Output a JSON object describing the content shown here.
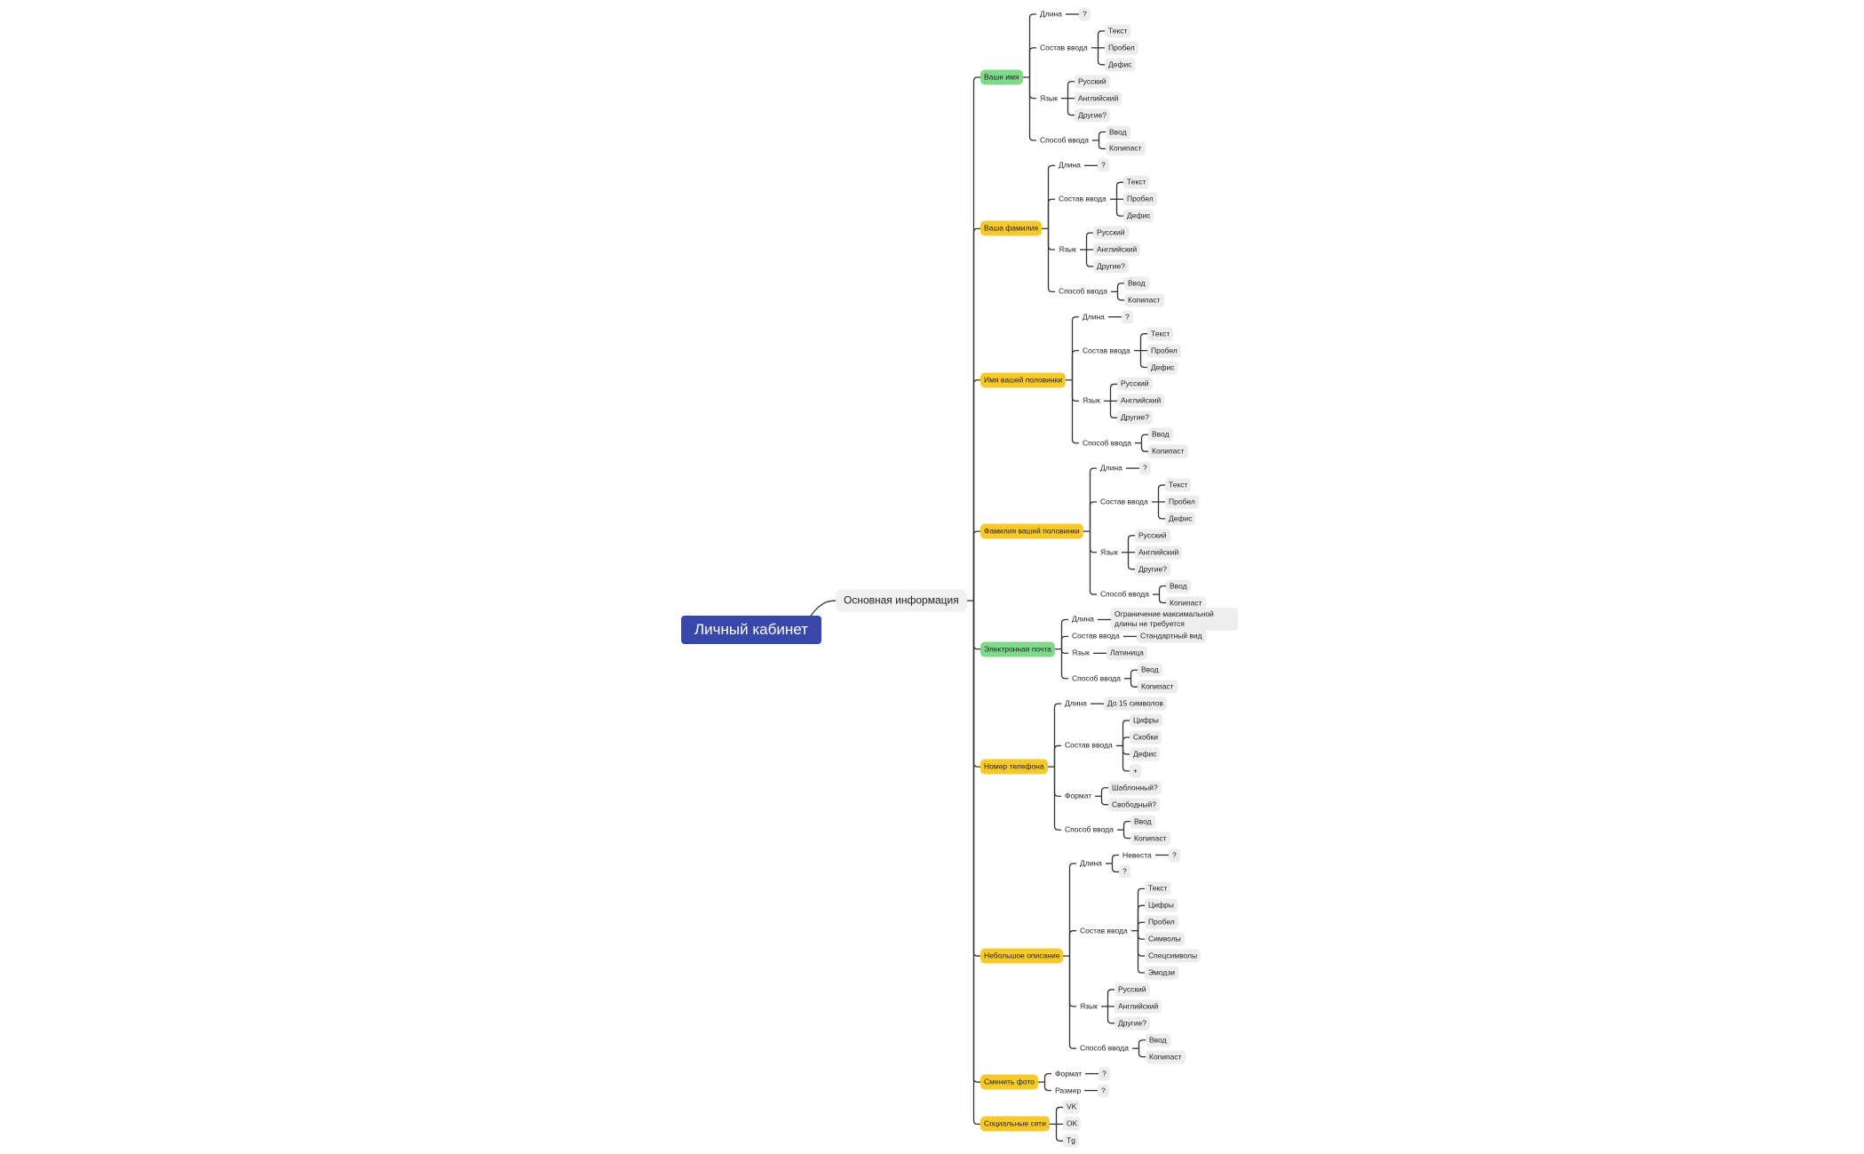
{
  "root": {
    "label": "Личный кабинет",
    "children": [
      {
        "label": "Основная информация",
        "children": [
          {
            "label": "Ваше имя",
            "color": "#7fd98a",
            "children": [
              {
                "label": "Длина",
                "children": [
                  {
                    "label": "?"
                  }
                ]
              },
              {
                "label": "Состав ввода",
                "children": [
                  {
                    "label": "Текст"
                  },
                  {
                    "label": "Пробел"
                  },
                  {
                    "label": "Дефис"
                  }
                ]
              },
              {
                "label": "Язык",
                "children": [
                  {
                    "label": "Русский"
                  },
                  {
                    "label": "Английский"
                  },
                  {
                    "label": "Другие?"
                  }
                ]
              },
              {
                "label": "Способ ввода",
                "children": [
                  {
                    "label": "Ввод"
                  },
                  {
                    "label": "Копипаст"
                  }
                ]
              }
            ]
          },
          {
            "label": "Ваша фамилия",
            "color": "#f7c92a",
            "children": [
              {
                "label": "Длина",
                "children": [
                  {
                    "label": "?"
                  }
                ]
              },
              {
                "label": "Состав ввода",
                "children": [
                  {
                    "label": "Текст"
                  },
                  {
                    "label": "Пробел"
                  },
                  {
                    "label": "Дефис"
                  }
                ]
              },
              {
                "label": "Язык",
                "children": [
                  {
                    "label": "Русский"
                  },
                  {
                    "label": "Английский"
                  },
                  {
                    "label": "Другие?"
                  }
                ]
              },
              {
                "label": "Способ ввода",
                "children": [
                  {
                    "label": "Ввод"
                  },
                  {
                    "label": "Копипаст"
                  }
                ]
              }
            ]
          },
          {
            "label": "Имя вашей половинки",
            "color": "#f7c92a",
            "children": [
              {
                "label": "Длина",
                "children": [
                  {
                    "label": "?"
                  }
                ]
              },
              {
                "label": "Состав ввода",
                "children": [
                  {
                    "label": "Текст"
                  },
                  {
                    "label": "Пробел"
                  },
                  {
                    "label": "Дефис"
                  }
                ]
              },
              {
                "label": "Язык",
                "children": [
                  {
                    "label": "Русский"
                  },
                  {
                    "label": "Английский"
                  },
                  {
                    "label": "Другие?"
                  }
                ]
              },
              {
                "label": "Способ ввода",
                "children": [
                  {
                    "label": "Ввод"
                  },
                  {
                    "label": "Копипаст"
                  }
                ]
              }
            ]
          },
          {
            "label": "Фамилия вашей половинки",
            "color": "#f7c92a",
            "children": [
              {
                "label": "Длина",
                "children": [
                  {
                    "label": "?"
                  }
                ]
              },
              {
                "label": "Состав ввода",
                "children": [
                  {
                    "label": "Текст"
                  },
                  {
                    "label": "Пробел"
                  },
                  {
                    "label": "Дефис"
                  }
                ]
              },
              {
                "label": "Язык",
                "children": [
                  {
                    "label": "Русский"
                  },
                  {
                    "label": "Английский"
                  },
                  {
                    "label": "Другие?"
                  }
                ]
              },
              {
                "label": "Способ ввода",
                "children": [
                  {
                    "label": "Ввод"
                  },
                  {
                    "label": "Копипаст"
                  }
                ]
              }
            ]
          },
          {
            "label": "Электронная почта",
            "color": "#7fd98a",
            "children": [
              {
                "label": "Длина",
                "children": [
                  {
                    "label": "Ограничение максимальной длины не требуется"
                  }
                ]
              },
              {
                "label": "Состав ввода",
                "children": [
                  {
                    "label": "Стандартный вид"
                  }
                ]
              },
              {
                "label": "Язык",
                "children": [
                  {
                    "label": "Латиница"
                  }
                ]
              },
              {
                "label": "Способ ввода",
                "children": [
                  {
                    "label": "Ввод"
                  },
                  {
                    "label": "Копипаст"
                  }
                ]
              }
            ]
          },
          {
            "label": "Номер  телефона",
            "color": "#f7c92a",
            "children": [
              {
                "label": "Длина",
                "children": [
                  {
                    "label": "До 15 символов"
                  }
                ]
              },
              {
                "label": "Состав ввода",
                "children": [
                  {
                    "label": "Цифры"
                  },
                  {
                    "label": "Скобки"
                  },
                  {
                    "label": "Дефис"
                  },
                  {
                    "label": "+"
                  }
                ]
              },
              {
                "label": "Формат",
                "children": [
                  {
                    "label": "Шаблонный?"
                  },
                  {
                    "label": "Свободный?"
                  }
                ]
              },
              {
                "label": "Способ ввода",
                "children": [
                  {
                    "label": "Ввод"
                  },
                  {
                    "label": "Копипаст"
                  }
                ]
              }
            ]
          },
          {
            "label": "Небольшое описание",
            "color": "#f7c92a",
            "children": [
              {
                "label": "Длина",
                "children": [
                  {
                    "label": "Невеста",
                    "children": [
                      {
                        "label": "?"
                      }
                    ]
                  },
                  {
                    "label": "?"
                  }
                ]
              },
              {
                "label": "Состав ввода",
                "children": [
                  {
                    "label": "Текст"
                  },
                  {
                    "label": "Цифры"
                  },
                  {
                    "label": "Пробел"
                  },
                  {
                    "label": "Символы"
                  },
                  {
                    "label": "Спецсимволы"
                  },
                  {
                    "label": "Эмодзи"
                  }
                ]
              },
              {
                "label": "Язык",
                "children": [
                  {
                    "label": "Русский"
                  },
                  {
                    "label": "Английский"
                  },
                  {
                    "label": "Другие?"
                  }
                ]
              },
              {
                "label": "Способ ввода",
                "children": [
                  {
                    "label": "Ввод"
                  },
                  {
                    "label": "Копипаст"
                  }
                ]
              }
            ]
          },
          {
            "label": "Сменить фото",
            "color": "#f7c92a",
            "children": [
              {
                "label": "Формат",
                "children": [
                  {
                    "label": "?"
                  }
                ]
              },
              {
                "label": "Размер",
                "children": [
                  {
                    "label": "?"
                  }
                ]
              }
            ]
          },
          {
            "label": "Социальные сети",
            "color": "#f7c92a",
            "children": [
              {
                "label": "VK"
              },
              {
                "label": "OK"
              },
              {
                "label": "Tg"
              }
            ]
          }
        ]
      }
    ]
  }
}
